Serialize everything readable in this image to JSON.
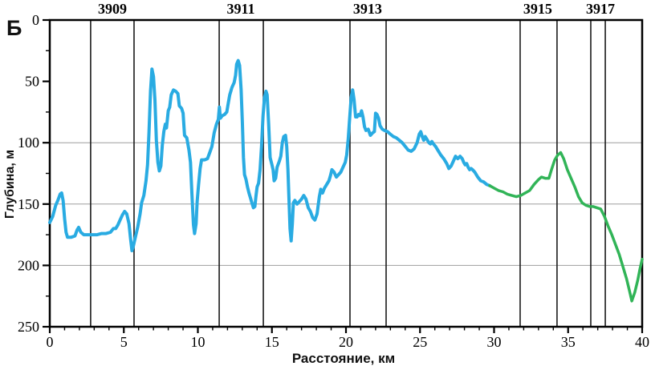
{
  "figure": {
    "panel_label": "Б"
  },
  "chart_data": {
    "type": "line",
    "title": "",
    "xlabel": "Расстояние, км",
    "ylabel": "Глубина, м",
    "xlim": [
      0,
      40
    ],
    "ylim": [
      0,
      250
    ],
    "y_inverted": true,
    "grid_on": true,
    "x_major_ticks": [
      0,
      5,
      10,
      15,
      20,
      25,
      30,
      35,
      40
    ],
    "x_minor_step": 1,
    "y_major_ticks": [
      0,
      50,
      100,
      150,
      200,
      250
    ],
    "y_minor_step": 25,
    "y_gridlines": [
      100,
      150,
      200
    ],
    "station_lines_km": [
      2.76,
      5.69,
      11.44,
      14.42,
      20.27,
      22.71,
      31.76,
      34.25,
      36.53,
      37.51
    ],
    "stations": [
      {
        "label": "3909",
        "km": 4.23
      },
      {
        "label": "3911",
        "km": 12.9
      },
      {
        "label": "3913",
        "km": 21.46
      },
      {
        "label": "3915",
        "km": 32.95
      },
      {
        "label": "3917",
        "km": 37.18
      }
    ],
    "colors": {
      "blue_profile": "#29ABE2",
      "green_profile": "#31B457",
      "gridline": "#9E9E9E",
      "axis": "#000000",
      "station_line": "#1A1A1A"
    },
    "series": [
      {
        "name": "blue",
        "color_key": "blue_profile",
        "points": [
          [
            0,
            165
          ],
          [
            0.2,
            160
          ],
          [
            0.4,
            151
          ],
          [
            0.55,
            147
          ],
          [
            0.7,
            142
          ],
          [
            0.8,
            141
          ],
          [
            0.9,
            147
          ],
          [
            1.0,
            162
          ],
          [
            1.1,
            173
          ],
          [
            1.2,
            177
          ],
          [
            1.45,
            177
          ],
          [
            1.7,
            176
          ],
          [
            1.85,
            171
          ],
          [
            1.95,
            169
          ],
          [
            2.1,
            173
          ],
          [
            2.3,
            175
          ],
          [
            2.6,
            175
          ],
          [
            2.9,
            175
          ],
          [
            3.2,
            175
          ],
          [
            3.5,
            174
          ],
          [
            3.8,
            174
          ],
          [
            4.1,
            173
          ],
          [
            4.3,
            170
          ],
          [
            4.45,
            170
          ],
          [
            4.6,
            167
          ],
          [
            4.75,
            163
          ],
          [
            4.9,
            159
          ],
          [
            5.05,
            156
          ],
          [
            5.2,
            158
          ],
          [
            5.35,
            166
          ],
          [
            5.45,
            178
          ],
          [
            5.55,
            188
          ],
          [
            5.65,
            184
          ],
          [
            5.8,
            176
          ],
          [
            5.95,
            168
          ],
          [
            6.1,
            158
          ],
          [
            6.2,
            149
          ],
          [
            6.35,
            143
          ],
          [
            6.5,
            131
          ],
          [
            6.6,
            118
          ],
          [
            6.7,
            92
          ],
          [
            6.8,
            58
          ],
          [
            6.9,
            40
          ],
          [
            7.0,
            46
          ],
          [
            7.1,
            65
          ],
          [
            7.2,
            98
          ],
          [
            7.3,
            116
          ],
          [
            7.4,
            123
          ],
          [
            7.5,
            119
          ],
          [
            7.6,
            102
          ],
          [
            7.7,
            91
          ],
          [
            7.8,
            85
          ],
          [
            7.88,
            88
          ],
          [
            8.0,
            74
          ],
          [
            8.1,
            71
          ],
          [
            8.2,
            61
          ],
          [
            8.35,
            57
          ],
          [
            8.5,
            58
          ],
          [
            8.65,
            60
          ],
          [
            8.75,
            70
          ],
          [
            8.9,
            72
          ],
          [
            9.0,
            76
          ],
          [
            9.1,
            94
          ],
          [
            9.25,
            96
          ],
          [
            9.4,
            106
          ],
          [
            9.5,
            116
          ],
          [
            9.6,
            142
          ],
          [
            9.7,
            167
          ],
          [
            9.78,
            174
          ],
          [
            9.88,
            166
          ],
          [
            9.95,
            148
          ],
          [
            10.05,
            134
          ],
          [
            10.15,
            121
          ],
          [
            10.25,
            114
          ],
          [
            10.45,
            114
          ],
          [
            10.65,
            113
          ],
          [
            10.8,
            108
          ],
          [
            10.95,
            103
          ],
          [
            11.1,
            92
          ],
          [
            11.25,
            85
          ],
          [
            11.38,
            81
          ],
          [
            11.45,
            71
          ],
          [
            11.52,
            80
          ],
          [
            11.65,
            78
          ],
          [
            11.8,
            77
          ],
          [
            11.95,
            75
          ],
          [
            12.05,
            68
          ],
          [
            12.15,
            61
          ],
          [
            12.3,
            55
          ],
          [
            12.45,
            51
          ],
          [
            12.55,
            45
          ],
          [
            12.62,
            36
          ],
          [
            12.72,
            33
          ],
          [
            12.82,
            37
          ],
          [
            12.92,
            57
          ],
          [
            13.0,
            83
          ],
          [
            13.08,
            112
          ],
          [
            13.15,
            126
          ],
          [
            13.25,
            130
          ],
          [
            13.35,
            136
          ],
          [
            13.45,
            141
          ],
          [
            13.55,
            145
          ],
          [
            13.65,
            149
          ],
          [
            13.75,
            153
          ],
          [
            13.85,
            152
          ],
          [
            13.92,
            144
          ],
          [
            14.0,
            136
          ],
          [
            14.1,
            133
          ],
          [
            14.2,
            122
          ],
          [
            14.3,
            103
          ],
          [
            14.4,
            78
          ],
          [
            14.5,
            63
          ],
          [
            14.6,
            58
          ],
          [
            14.68,
            61
          ],
          [
            14.78,
            85
          ],
          [
            14.88,
            112
          ],
          [
            15.0,
            118
          ],
          [
            15.08,
            122
          ],
          [
            15.15,
            131
          ],
          [
            15.25,
            129
          ],
          [
            15.35,
            120
          ],
          [
            15.5,
            115
          ],
          [
            15.6,
            111
          ],
          [
            15.7,
            100
          ],
          [
            15.8,
            95
          ],
          [
            15.92,
            94
          ],
          [
            16.0,
            103
          ],
          [
            16.08,
            122
          ],
          [
            16.15,
            146
          ],
          [
            16.22,
            170
          ],
          [
            16.3,
            180
          ],
          [
            16.38,
            166
          ],
          [
            16.45,
            149
          ],
          [
            16.55,
            147
          ],
          [
            16.7,
            150
          ],
          [
            16.85,
            148
          ],
          [
            17.0,
            146
          ],
          [
            17.15,
            143
          ],
          [
            17.3,
            146
          ],
          [
            17.45,
            153
          ],
          [
            17.6,
            156
          ],
          [
            17.75,
            161
          ],
          [
            17.9,
            163
          ],
          [
            18.05,
            158
          ],
          [
            18.2,
            144
          ],
          [
            18.3,
            138
          ],
          [
            18.42,
            141
          ],
          [
            18.55,
            137
          ],
          [
            18.7,
            134
          ],
          [
            18.85,
            131
          ],
          [
            18.95,
            127
          ],
          [
            19.05,
            122
          ],
          [
            19.2,
            124
          ],
          [
            19.35,
            128
          ],
          [
            19.5,
            126
          ],
          [
            19.65,
            124
          ],
          [
            19.8,
            120
          ],
          [
            19.95,
            116
          ],
          [
            20.05,
            110
          ],
          [
            20.15,
            97
          ],
          [
            20.25,
            80
          ],
          [
            20.35,
            63
          ],
          [
            20.45,
            57
          ],
          [
            20.55,
            65
          ],
          [
            20.65,
            79
          ],
          [
            20.75,
            79
          ],
          [
            20.85,
            77
          ],
          [
            20.95,
            78
          ],
          [
            21.05,
            74
          ],
          [
            21.15,
            79
          ],
          [
            21.25,
            87
          ],
          [
            21.35,
            90
          ],
          [
            21.5,
            89
          ],
          [
            21.65,
            94
          ],
          [
            21.8,
            92
          ],
          [
            21.92,
            91
          ],
          [
            22.0,
            76
          ],
          [
            22.1,
            77
          ],
          [
            22.2,
            80
          ],
          [
            22.3,
            86
          ],
          [
            22.45,
            89
          ],
          [
            22.6,
            90
          ],
          [
            22.8,
            91
          ],
          [
            23.0,
            93
          ],
          [
            23.2,
            95
          ],
          [
            23.4,
            96
          ],
          [
            23.6,
            98
          ],
          [
            23.8,
            100
          ],
          [
            24.0,
            103
          ],
          [
            24.2,
            106
          ],
          [
            24.4,
            107
          ],
          [
            24.6,
            105
          ],
          [
            24.8,
            100
          ],
          [
            24.95,
            93
          ],
          [
            25.05,
            91
          ],
          [
            25.15,
            95
          ],
          [
            25.25,
            98
          ],
          [
            25.35,
            95
          ],
          [
            25.5,
            98
          ],
          [
            25.6,
            100
          ],
          [
            25.7,
            101
          ],
          [
            25.8,
            99
          ],
          [
            25.9,
            101
          ],
          [
            26.05,
            103
          ],
          [
            26.2,
            106
          ],
          [
            26.4,
            110
          ],
          [
            26.6,
            113
          ],
          [
            26.8,
            117
          ],
          [
            26.95,
            121
          ],
          [
            27.1,
            119
          ],
          [
            27.25,
            115
          ],
          [
            27.4,
            111
          ],
          [
            27.55,
            113
          ],
          [
            27.7,
            111
          ],
          [
            27.85,
            113
          ],
          [
            27.95,
            116
          ],
          [
            28.05,
            118
          ],
          [
            28.15,
            117
          ],
          [
            28.25,
            120
          ],
          [
            28.35,
            122
          ],
          [
            28.45,
            121
          ],
          [
            28.55,
            122
          ],
          [
            28.7,
            124
          ],
          [
            28.9,
            128
          ],
          [
            29.1,
            131
          ],
          [
            29.3,
            132
          ],
          [
            29.5,
            134
          ],
          [
            29.7,
            135
          ]
        ]
      },
      {
        "name": "green",
        "color_key": "green_profile",
        "points": [
          [
            29.7,
            135
          ],
          [
            30.0,
            137
          ],
          [
            30.3,
            139
          ],
          [
            30.6,
            140
          ],
          [
            30.9,
            142
          ],
          [
            31.2,
            143
          ],
          [
            31.5,
            144
          ],
          [
            31.8,
            143
          ],
          [
            32.1,
            141
          ],
          [
            32.4,
            139
          ],
          [
            32.7,
            134
          ],
          [
            33.0,
            130
          ],
          [
            33.2,
            128
          ],
          [
            33.45,
            129
          ],
          [
            33.7,
            129
          ],
          [
            33.9,
            121
          ],
          [
            34.1,
            114
          ],
          [
            34.3,
            110
          ],
          [
            34.5,
            108
          ],
          [
            34.7,
            113
          ],
          [
            34.95,
            122
          ],
          [
            35.2,
            129
          ],
          [
            35.45,
            136
          ],
          [
            35.7,
            144
          ],
          [
            35.95,
            149
          ],
          [
            36.2,
            151
          ],
          [
            36.45,
            152
          ],
          [
            36.7,
            152
          ],
          [
            36.95,
            153
          ],
          [
            37.2,
            154
          ],
          [
            37.45,
            160
          ],
          [
            37.7,
            168
          ],
          [
            37.95,
            175
          ],
          [
            38.2,
            183
          ],
          [
            38.45,
            191
          ],
          [
            38.7,
            201
          ],
          [
            38.95,
            211
          ],
          [
            39.15,
            221
          ],
          [
            39.3,
            229
          ],
          [
            39.5,
            222
          ],
          [
            39.7,
            212
          ],
          [
            39.85,
            203
          ],
          [
            40.0,
            195
          ]
        ]
      }
    ]
  }
}
